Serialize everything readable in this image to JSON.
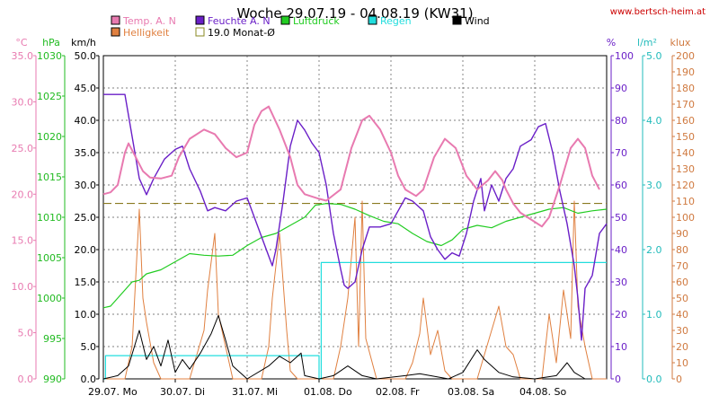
{
  "chart_data": {
    "type": "line",
    "title": "Woche 29.07.19 - 04.08.19 (KW31)",
    "source": "www.bertsch-heim.at",
    "x_range_days": [
      0,
      7
    ],
    "x_ticks": [
      {
        "day": 0,
        "label": "29.07.",
        "weekday": "Mo"
      },
      {
        "day": 1,
        "label": "30.07.",
        "weekday": "Di"
      },
      {
        "day": 2,
        "label": "31.07.",
        "weekday": "Mi"
      },
      {
        "day": 3,
        "label": "01.08.",
        "weekday": "Do"
      },
      {
        "day": 4,
        "label": "02.08.",
        "weekday": "Fr"
      },
      {
        "day": 5,
        "label": "03.08.",
        "weekday": "Sa"
      },
      {
        "day": 6,
        "label": "04.08.",
        "weekday": "So"
      }
    ],
    "axes": [
      {
        "id": "temp",
        "unit": "°C",
        "color": "#e87ab0",
        "min": 0,
        "max": 35,
        "step": 5,
        "decimals": 1,
        "side": "left"
      },
      {
        "id": "press",
        "unit": "hPa",
        "color": "#22bb22",
        "min": 990,
        "max": 1030,
        "step": 5,
        "decimals": 0,
        "side": "left"
      },
      {
        "id": "wind",
        "unit": "km/h",
        "color": "#000000",
        "min": 0,
        "max": 50,
        "step": 5,
        "decimals": 1,
        "side": "left"
      },
      {
        "id": "hum",
        "unit": "%",
        "color": "#6a1fc7",
        "min": 0,
        "max": 100,
        "step": 10,
        "decimals": 0,
        "side": "right"
      },
      {
        "id": "rain",
        "unit": "l/m²",
        "color": "#22bbbb",
        "min": 0,
        "max": 5,
        "step": 1,
        "decimals": 1,
        "side": "right"
      },
      {
        "id": "lux",
        "unit": "klux",
        "color": "#d07a40",
        "min": 0,
        "max": 200,
        "step": 10,
        "decimals": 0,
        "side": "right"
      }
    ],
    "legend": [
      {
        "label": "Temp. A. N",
        "color": "#e87ab0",
        "filled": true
      },
      {
        "label": "Feuchte A. N",
        "color": "#6a1fc7",
        "filled": true
      },
      {
        "label": "Luftdruck",
        "color": "#22cc22",
        "filled": true
      },
      {
        "label": "Regen",
        "color": "#22dddd",
        "filled": true
      },
      {
        "label": "Wind",
        "color": "#000000",
        "filled": true
      },
      {
        "label": "Helligkeit",
        "color": "#e08040",
        "filled": true
      },
      {
        "label": "19.0 Monat-Ø",
        "color": "#8a8a20",
        "filled": false
      }
    ],
    "reference_line": {
      "label": "19.0 Monat-Ø",
      "axis": "temp",
      "value": 19.0,
      "color": "#8a7a20"
    },
    "series": [
      {
        "name": "Temp. A. N",
        "axis": "temp",
        "color": "#e87ab0",
        "width": 2,
        "points": [
          [
            0,
            20
          ],
          [
            0.1,
            20.2
          ],
          [
            0.2,
            21
          ],
          [
            0.3,
            24.5
          ],
          [
            0.35,
            25.5
          ],
          [
            0.45,
            24
          ],
          [
            0.55,
            22.5
          ],
          [
            0.65,
            21.8
          ],
          [
            0.8,
            21.7
          ],
          [
            0.95,
            22
          ],
          [
            1.05,
            24
          ],
          [
            1.2,
            26
          ],
          [
            1.4,
            27
          ],
          [
            1.55,
            26.5
          ],
          [
            1.7,
            25
          ],
          [
            1.85,
            24
          ],
          [
            2.0,
            24.5
          ],
          [
            2.1,
            27.5
          ],
          [
            2.2,
            29
          ],
          [
            2.3,
            29.5
          ],
          [
            2.45,
            27
          ],
          [
            2.6,
            24
          ],
          [
            2.7,
            21
          ],
          [
            2.8,
            20
          ],
          [
            3.0,
            19.5
          ],
          [
            3.1,
            19.3
          ],
          [
            3.3,
            20.5
          ],
          [
            3.45,
            25
          ],
          [
            3.6,
            28
          ],
          [
            3.7,
            28.5
          ],
          [
            3.85,
            27
          ],
          [
            4.0,
            24.5
          ],
          [
            4.1,
            22
          ],
          [
            4.2,
            20.5
          ],
          [
            4.35,
            19.8
          ],
          [
            4.45,
            20.5
          ],
          [
            4.6,
            24
          ],
          [
            4.75,
            26
          ],
          [
            4.9,
            25
          ],
          [
            5.05,
            22
          ],
          [
            5.2,
            20.5
          ],
          [
            5.35,
            21.5
          ],
          [
            5.45,
            22.5
          ],
          [
            5.55,
            21.5
          ],
          [
            5.6,
            20.5
          ],
          [
            5.7,
            19
          ],
          [
            5.8,
            18
          ],
          [
            5.9,
            17.5
          ],
          [
            6.0,
            17
          ],
          [
            6.1,
            16.5
          ],
          [
            6.2,
            17.5
          ],
          [
            6.35,
            21
          ],
          [
            6.5,
            25
          ],
          [
            6.6,
            26
          ],
          [
            6.7,
            25
          ],
          [
            6.8,
            22
          ],
          [
            6.9,
            20.5
          ]
        ]
      },
      {
        "name": "Feuchte A. N",
        "axis": "hum",
        "color": "#6a1fc7",
        "width": 1.4,
        "points": [
          [
            0,
            88
          ],
          [
            0.15,
            88
          ],
          [
            0.3,
            88
          ],
          [
            0.4,
            75
          ],
          [
            0.5,
            62
          ],
          [
            0.6,
            57
          ],
          [
            0.7,
            62
          ],
          [
            0.85,
            68
          ],
          [
            1.0,
            71
          ],
          [
            1.1,
            72
          ],
          [
            1.2,
            65
          ],
          [
            1.35,
            58
          ],
          [
            1.45,
            52
          ],
          [
            1.55,
            53
          ],
          [
            1.7,
            52
          ],
          [
            1.85,
            55
          ],
          [
            2.0,
            56
          ],
          [
            2.1,
            50
          ],
          [
            2.2,
            44
          ],
          [
            2.3,
            38
          ],
          [
            2.35,
            35
          ],
          [
            2.4,
            40
          ],
          [
            2.5,
            55
          ],
          [
            2.6,
            72
          ],
          [
            2.7,
            80
          ],
          [
            2.8,
            77
          ],
          [
            2.9,
            73
          ],
          [
            3.0,
            70
          ],
          [
            3.1,
            60
          ],
          [
            3.2,
            45
          ],
          [
            3.3,
            34
          ],
          [
            3.35,
            29
          ],
          [
            3.4,
            28
          ],
          [
            3.5,
            30
          ],
          [
            3.6,
            40
          ],
          [
            3.7,
            47
          ],
          [
            3.85,
            47
          ],
          [
            4.0,
            48
          ],
          [
            4.1,
            52
          ],
          [
            4.2,
            56
          ],
          [
            4.3,
            55
          ],
          [
            4.45,
            52
          ],
          [
            4.55,
            44
          ],
          [
            4.65,
            40
          ],
          [
            4.75,
            37
          ],
          [
            4.85,
            39
          ],
          [
            4.95,
            38
          ],
          [
            5.05,
            45
          ],
          [
            5.15,
            55
          ],
          [
            5.25,
            62
          ],
          [
            5.3,
            52
          ],
          [
            5.4,
            60
          ],
          [
            5.5,
            55
          ],
          [
            5.6,
            62
          ],
          [
            5.7,
            65
          ],
          [
            5.8,
            72
          ],
          [
            5.95,
            74
          ],
          [
            6.05,
            78
          ],
          [
            6.15,
            79
          ],
          [
            6.25,
            70
          ],
          [
            6.35,
            58
          ],
          [
            6.45,
            48
          ],
          [
            6.55,
            35
          ],
          [
            6.6,
            25
          ],
          [
            6.65,
            12
          ],
          [
            6.7,
            28
          ],
          [
            6.8,
            32
          ],
          [
            6.9,
            45
          ],
          [
            7.0,
            48
          ]
        ]
      },
      {
        "name": "Luftdruck",
        "axis": "press",
        "color": "#22cc22",
        "width": 1.2,
        "points": [
          [
            0,
            998.8
          ],
          [
            0.1,
            999
          ],
          [
            0.2,
            1000
          ],
          [
            0.3,
            1001
          ],
          [
            0.4,
            1002
          ],
          [
            0.5,
            1002.2
          ],
          [
            0.6,
            1003
          ],
          [
            0.8,
            1003.5
          ],
          [
            1.0,
            1004.5
          ],
          [
            1.2,
            1005.5
          ],
          [
            1.4,
            1005.3
          ],
          [
            1.6,
            1005.2
          ],
          [
            1.8,
            1005.3
          ],
          [
            2.0,
            1006.5
          ],
          [
            2.2,
            1007.5
          ],
          [
            2.4,
            1008
          ],
          [
            2.6,
            1009
          ],
          [
            2.8,
            1010
          ],
          [
            2.95,
            1011.5
          ],
          [
            3.1,
            1011.7
          ],
          [
            3.3,
            1011.6
          ],
          [
            3.5,
            1011
          ],
          [
            3.7,
            1010.2
          ],
          [
            3.9,
            1009.5
          ],
          [
            4.1,
            1009.2
          ],
          [
            4.3,
            1008
          ],
          [
            4.5,
            1007
          ],
          [
            4.7,
            1006.5
          ],
          [
            4.85,
            1007.2
          ],
          [
            5.0,
            1008.5
          ],
          [
            5.2,
            1009
          ],
          [
            5.4,
            1008.7
          ],
          [
            5.6,
            1009.5
          ],
          [
            5.8,
            1010
          ],
          [
            6.0,
            1010.5
          ],
          [
            6.2,
            1011
          ],
          [
            6.4,
            1011.2
          ],
          [
            6.6,
            1010.5
          ],
          [
            6.8,
            1010.8
          ],
          [
            7.0,
            1011
          ]
        ]
      },
      {
        "name": "Regen",
        "axis": "rain",
        "color": "#22dddd",
        "width": 1.2,
        "step": true,
        "points": [
          [
            0,
            0
          ],
          [
            0.03,
            0
          ],
          [
            0.03,
            0.36
          ],
          [
            3.0,
            0.36
          ],
          [
            3.0,
            0
          ],
          [
            3.03,
            0
          ],
          [
            3.03,
            1.8
          ],
          [
            3.03,
            1.8
          ],
          [
            7.0,
            1.8
          ]
        ]
      },
      {
        "name": "Wind",
        "axis": "wind",
        "color": "#000000",
        "width": 1,
        "points": [
          [
            0,
            0
          ],
          [
            0.2,
            0.5
          ],
          [
            0.35,
            2
          ],
          [
            0.5,
            7.5
          ],
          [
            0.6,
            3
          ],
          [
            0.7,
            5
          ],
          [
            0.8,
            2
          ],
          [
            0.9,
            6
          ],
          [
            1.0,
            1
          ],
          [
            1.1,
            3
          ],
          [
            1.2,
            1.5
          ],
          [
            1.35,
            4
          ],
          [
            1.5,
            7
          ],
          [
            1.6,
            9.8
          ],
          [
            1.7,
            6
          ],
          [
            1.8,
            2
          ],
          [
            2.0,
            0
          ],
          [
            2.3,
            2
          ],
          [
            2.45,
            3.5
          ],
          [
            2.6,
            2.5
          ],
          [
            2.75,
            4
          ],
          [
            2.8,
            0.5
          ],
          [
            3.0,
            0
          ],
          [
            3.2,
            0.5
          ],
          [
            3.4,
            2
          ],
          [
            3.6,
            0.5
          ],
          [
            3.8,
            0
          ],
          [
            4.2,
            0.5
          ],
          [
            4.4,
            0.8
          ],
          [
            4.6,
            0.4
          ],
          [
            4.8,
            0
          ],
          [
            5.0,
            1
          ],
          [
            5.2,
            4.5
          ],
          [
            5.3,
            3
          ],
          [
            5.5,
            1
          ],
          [
            5.7,
            0.3
          ],
          [
            6.0,
            0
          ],
          [
            6.3,
            0.5
          ],
          [
            6.45,
            2.5
          ],
          [
            6.55,
            1
          ],
          [
            6.7,
            0
          ]
        ]
      },
      {
        "name": "Helligkeit",
        "axis": "lux",
        "color": "#e08040",
        "width": 1,
        "points": [
          [
            0,
            0
          ],
          [
            0.3,
            0
          ],
          [
            0.4,
            20
          ],
          [
            0.5,
            105
          ],
          [
            0.55,
            50
          ],
          [
            0.6,
            35
          ],
          [
            0.7,
            10
          ],
          [
            0.8,
            0
          ],
          [
            1.2,
            0
          ],
          [
            1.3,
            15
          ],
          [
            1.4,
            30
          ],
          [
            1.45,
            55
          ],
          [
            1.55,
            90
          ],
          [
            1.6,
            40
          ],
          [
            1.7,
            20
          ],
          [
            1.8,
            0
          ],
          [
            2.2,
            0
          ],
          [
            2.3,
            20
          ],
          [
            2.35,
            50
          ],
          [
            2.45,
            90
          ],
          [
            2.55,
            30
          ],
          [
            2.6,
            5
          ],
          [
            2.7,
            0
          ],
          [
            3.2,
            0
          ],
          [
            3.3,
            20
          ],
          [
            3.4,
            50
          ],
          [
            3.5,
            100
          ],
          [
            3.55,
            20
          ],
          [
            3.6,
            110
          ],
          [
            3.65,
            25
          ],
          [
            3.8,
            0
          ],
          [
            4.2,
            0
          ],
          [
            4.3,
            10
          ],
          [
            4.4,
            28
          ],
          [
            4.45,
            50
          ],
          [
            4.55,
            15
          ],
          [
            4.65,
            30
          ],
          [
            4.75,
            5
          ],
          [
            4.85,
            0
          ],
          [
            5.2,
            0
          ],
          [
            5.3,
            15
          ],
          [
            5.4,
            30
          ],
          [
            5.5,
            45
          ],
          [
            5.6,
            20
          ],
          [
            5.7,
            15
          ],
          [
            5.8,
            0
          ],
          [
            6.1,
            0
          ],
          [
            6.2,
            40
          ],
          [
            6.3,
            10
          ],
          [
            6.4,
            55
          ],
          [
            6.5,
            25
          ],
          [
            6.55,
            110
          ],
          [
            6.6,
            45
          ],
          [
            6.7,
            20
          ],
          [
            6.8,
            0
          ],
          [
            7.0,
            0
          ]
        ]
      }
    ]
  }
}
